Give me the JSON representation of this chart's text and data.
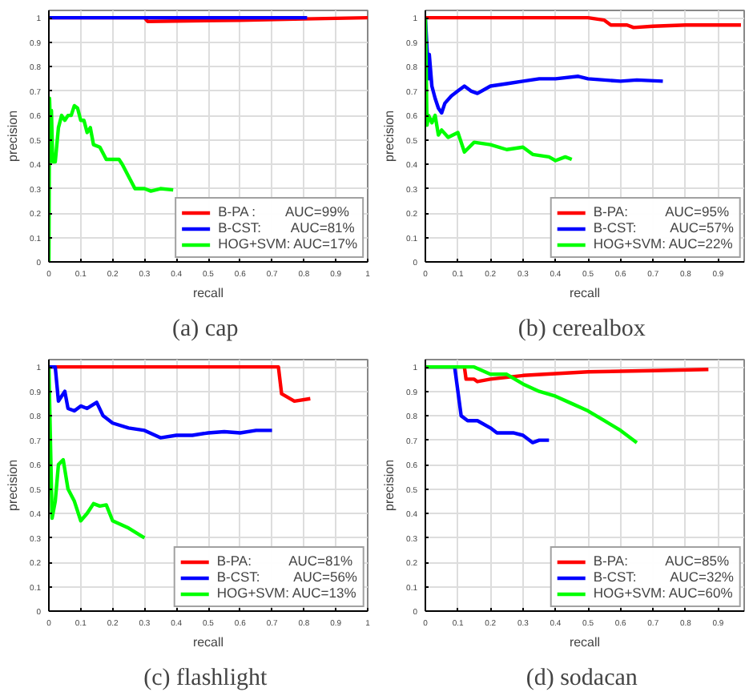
{
  "chart_data": [
    {
      "type": "line",
      "title": "(a)  cap",
      "xlabel": "recall",
      "ylabel": "precision",
      "xlim": [
        0,
        1
      ],
      "ylim": [
        0,
        1.03
      ],
      "xticks": [
        0,
        0.1,
        0.2,
        0.3,
        0.4,
        0.5,
        0.6,
        0.7,
        0.8,
        0.9,
        1
      ],
      "yticks": [
        0,
        0.1,
        0.2,
        0.3,
        0.4,
        0.5,
        0.6,
        0.7,
        0.8,
        0.9,
        1
      ],
      "grid": true,
      "legend": "bottom right",
      "series": [
        {
          "name": "B-PA :        AUC=99%",
          "color": "#ff0000",
          "x": [
            0,
            0.3,
            0.31,
            0.6,
            0.8,
            1.0
          ],
          "values": [
            1,
            1,
            0.985,
            0.99,
            0.995,
            1.0
          ]
        },
        {
          "name": "B-CST:        AUC=81%",
          "color": "#0000ff",
          "x": [
            0,
            0.81
          ],
          "values": [
            1,
            1
          ]
        },
        {
          "name": "HOG+SVM: AUC=17%",
          "color": "#00ff00",
          "x": [
            0,
            0.002,
            0.005,
            0.008,
            0.012,
            0.02,
            0.03,
            0.04,
            0.05,
            0.06,
            0.07,
            0.08,
            0.09,
            0.1,
            0.11,
            0.12,
            0.13,
            0.14,
            0.16,
            0.18,
            0.22,
            0.23,
            0.25,
            0.27,
            0.3,
            0.32,
            0.35,
            0.39
          ],
          "values": [
            0,
            0.67,
            0.55,
            0.62,
            0.41,
            0.41,
            0.55,
            0.6,
            0.58,
            0.6,
            0.6,
            0.64,
            0.63,
            0.58,
            0.58,
            0.53,
            0.55,
            0.48,
            0.47,
            0.42,
            0.42,
            0.4,
            0.35,
            0.3,
            0.3,
            0.29,
            0.3,
            0.295
          ]
        }
      ]
    },
    {
      "type": "line",
      "title": "(b)  cerealbox",
      "xlabel": "recall",
      "ylabel": "precision",
      "xlim": [
        0,
        0.98
      ],
      "ylim": [
        0,
        1.03
      ],
      "xticks": [
        0,
        0.1,
        0.2,
        0.3,
        0.4,
        0.5,
        0.6,
        0.7,
        0.8,
        0.9
      ],
      "yticks": [
        0,
        0.1,
        0.2,
        0.3,
        0.4,
        0.5,
        0.6,
        0.7,
        0.8,
        0.9,
        1
      ],
      "grid": true,
      "legend": "bottom right",
      "series": [
        {
          "name": "B-PA:          AUC=95%",
          "color": "#ff0000",
          "x": [
            0,
            0.5,
            0.55,
            0.57,
            0.62,
            0.64,
            0.7,
            0.8,
            0.97
          ],
          "values": [
            1,
            1,
            0.99,
            0.97,
            0.97,
            0.96,
            0.965,
            0.97,
            0.97
          ]
        },
        {
          "name": "B-CST:         AUC=57%",
          "color": "#0000ff",
          "x": [
            0,
            0.01,
            0.012,
            0.02,
            0.03,
            0.04,
            0.05,
            0.06,
            0.08,
            0.1,
            0.12,
            0.14,
            0.16,
            0.2,
            0.25,
            0.3,
            0.35,
            0.4,
            0.47,
            0.5,
            0.6,
            0.65,
            0.73
          ],
          "values": [
            1,
            0.75,
            0.85,
            0.72,
            0.67,
            0.63,
            0.61,
            0.65,
            0.68,
            0.7,
            0.72,
            0.7,
            0.69,
            0.72,
            0.73,
            0.74,
            0.75,
            0.75,
            0.76,
            0.75,
            0.74,
            0.745,
            0.74
          ]
        },
        {
          "name": "HOG+SVM: AUC=22%",
          "color": "#00ff00",
          "x": [
            0,
            0.005,
            0.01,
            0.02,
            0.03,
            0.04,
            0.05,
            0.07,
            0.1,
            0.12,
            0.15,
            0.2,
            0.25,
            0.3,
            0.33,
            0.38,
            0.4,
            0.43,
            0.45
          ],
          "values": [
            1,
            0.56,
            0.6,
            0.57,
            0.6,
            0.52,
            0.54,
            0.51,
            0.53,
            0.45,
            0.49,
            0.48,
            0.46,
            0.47,
            0.44,
            0.43,
            0.415,
            0.43,
            0.42
          ]
        }
      ]
    },
    {
      "type": "line",
      "title": "(c)  flashlight",
      "xlabel": "recall",
      "ylabel": "precision",
      "xlim": [
        0,
        1
      ],
      "ylim": [
        0,
        1.03
      ],
      "xticks": [
        0,
        0.1,
        0.2,
        0.3,
        0.4,
        0.5,
        0.6,
        0.7,
        0.8,
        0.9,
        1
      ],
      "yticks": [
        0,
        0.1,
        0.2,
        0.3,
        0.4,
        0.5,
        0.6,
        0.7,
        0.8,
        0.9,
        1
      ],
      "grid": true,
      "legend": "bottom right",
      "series": [
        {
          "name": "B-PA:          AUC=81%",
          "color": "#ff0000",
          "x": [
            0,
            0.72,
            0.73,
            0.77,
            0.82
          ],
          "values": [
            1,
            1,
            0.89,
            0.86,
            0.87
          ]
        },
        {
          "name": "B-CST:         AUC=56%",
          "color": "#0000ff",
          "x": [
            0,
            0.02,
            0.03,
            0.05,
            0.06,
            0.08,
            0.1,
            0.12,
            0.15,
            0.17,
            0.2,
            0.25,
            0.3,
            0.35,
            0.4,
            0.45,
            0.5,
            0.55,
            0.6,
            0.65,
            0.7
          ],
          "values": [
            1,
            1,
            0.86,
            0.9,
            0.83,
            0.82,
            0.84,
            0.83,
            0.855,
            0.8,
            0.77,
            0.75,
            0.74,
            0.71,
            0.72,
            0.72,
            0.73,
            0.735,
            0.73,
            0.74,
            0.74
          ]
        },
        {
          "name": "HOG+SVM: AUC=13%",
          "color": "#00ff00",
          "x": [
            0,
            0.01,
            0.02,
            0.03,
            0.045,
            0.06,
            0.08,
            0.1,
            0.12,
            0.14,
            0.16,
            0.18,
            0.2,
            0.25,
            0.3
          ],
          "values": [
            1,
            0.38,
            0.45,
            0.6,
            0.62,
            0.5,
            0.45,
            0.37,
            0.4,
            0.44,
            0.43,
            0.435,
            0.37,
            0.34,
            0.3
          ]
        }
      ]
    },
    {
      "type": "line",
      "title": "(d)  sodacan",
      "xlabel": "recall",
      "ylabel": "precision",
      "xlim": [
        0,
        0.98
      ],
      "ylim": [
        0,
        1.03
      ],
      "xticks": [
        0,
        0.1,
        0.2,
        0.3,
        0.4,
        0.5,
        0.6,
        0.7,
        0.8,
        0.9
      ],
      "yticks": [
        0,
        0.1,
        0.2,
        0.3,
        0.4,
        0.5,
        0.6,
        0.7,
        0.8,
        0.9,
        1
      ],
      "grid": true,
      "legend": "bottom right",
      "series": [
        {
          "name": "B-PA:          AUC=85%",
          "color": "#ff0000",
          "x": [
            0,
            0.12,
            0.125,
            0.15,
            0.16,
            0.2,
            0.3,
            0.5,
            0.7,
            0.87
          ],
          "values": [
            1,
            1,
            0.95,
            0.95,
            0.94,
            0.95,
            0.965,
            0.98,
            0.985,
            0.99
          ]
        },
        {
          "name": "B-CST:         AUC=32%",
          "color": "#0000ff",
          "x": [
            0,
            0.09,
            0.1,
            0.11,
            0.13,
            0.16,
            0.2,
            0.22,
            0.27,
            0.3,
            0.33,
            0.35,
            0.38
          ],
          "values": [
            1,
            1,
            0.9,
            0.8,
            0.78,
            0.78,
            0.75,
            0.73,
            0.73,
            0.72,
            0.69,
            0.7,
            0.7
          ]
        },
        {
          "name": "HOG+SVM: AUC=60%",
          "color": "#00ff00",
          "x": [
            0,
            0.15,
            0.2,
            0.25,
            0.3,
            0.35,
            0.4,
            0.45,
            0.5,
            0.55,
            0.6,
            0.65
          ],
          "values": [
            1,
            1,
            0.97,
            0.97,
            0.93,
            0.9,
            0.88,
            0.85,
            0.82,
            0.78,
            0.74,
            0.69
          ]
        }
      ]
    }
  ]
}
